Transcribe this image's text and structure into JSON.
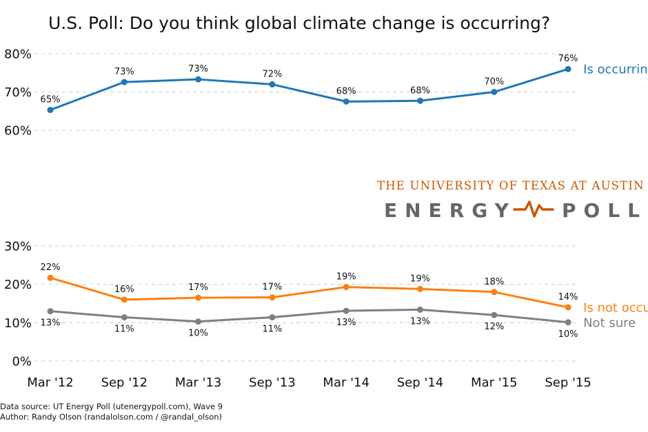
{
  "chart_data": {
    "type": "line",
    "title": "U.S. Poll: Do you think global climate change is occurring?",
    "categories": [
      "Mar '12",
      "Sep '12",
      "Mar '13",
      "Sep '13",
      "Mar '14",
      "Sep '14",
      "Mar '15",
      "Sep '15"
    ],
    "panels": [
      {
        "yticks": [
          "60%",
          "70%",
          "80%"
        ],
        "ylim": [
          60,
          80
        ],
        "series": [
          {
            "name": "Is occurring",
            "color": "#1f77b4",
            "values": [
              65.3,
              72.6,
              73.3,
              72.0,
              67.5,
              67.7,
              70.0,
              76.0
            ],
            "labels": [
              "65%",
              "73%",
              "73%",
              "72%",
              "68%",
              "68%",
              "70%",
              "76%"
            ]
          }
        ]
      },
      {
        "yticks": [
          "0%",
          "10%",
          "20%",
          "30%"
        ],
        "ylim": [
          0,
          30
        ],
        "series": [
          {
            "name": "Is not occurring",
            "color": "#ff7f0e",
            "values": [
              21.7,
              16.0,
              16.5,
              16.6,
              19.3,
              18.8,
              18.0,
              14.0
            ],
            "labels": [
              "22%",
              "16%",
              "17%",
              "17%",
              "19%",
              "19%",
              "18%",
              "14%"
            ]
          },
          {
            "name": "Not sure",
            "color": "#7f7f7f",
            "values": [
              13.0,
              11.4,
              10.3,
              11.4,
              13.1,
              13.4,
              12.0,
              10.1
            ],
            "labels": [
              "13%",
              "11%",
              "10%",
              "11%",
              "13%",
              "13%",
              "12%",
              "10%"
            ]
          }
        ]
      }
    ],
    "grid": true,
    "legend": "inline labels at right end of each line"
  },
  "logo": {
    "line1": "THE UNIVERSITY OF TEXAS AT AUSTIN",
    "line2_left": "ENERGY",
    "line2_right": "POLL",
    "icon": "pulse-wave-icon",
    "color_accent": "#cc5500",
    "color_text": "#666666"
  },
  "footer": {
    "source": "Data source: UT Energy Poll (utenergypoll.com), Wave 9",
    "author": "Author: Randy Olson (randalolson.com / @randal_olson)"
  }
}
